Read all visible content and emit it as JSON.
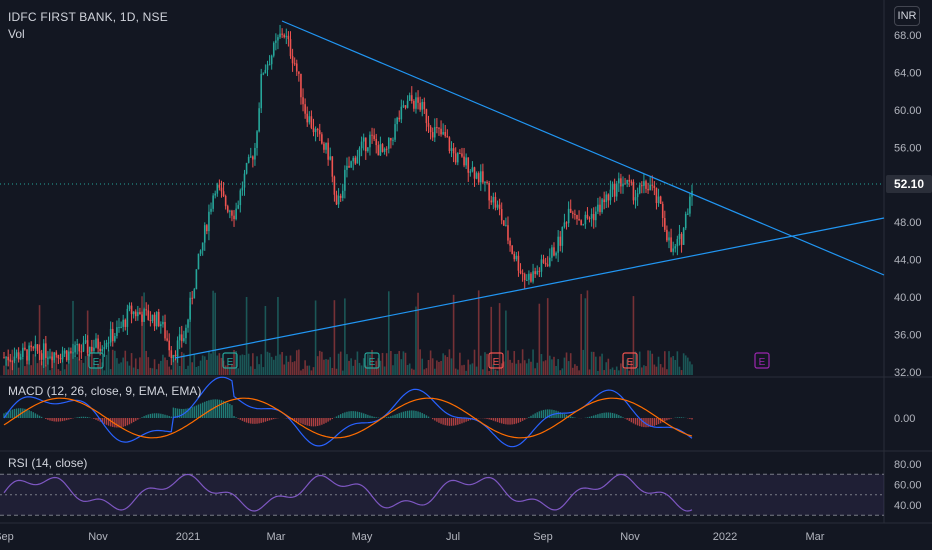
{
  "header": {
    "title": "IDFC FIRST BANK, 1D, NSE",
    "volume_label": "Vol",
    "currency": "INR"
  },
  "price_axis": {
    "ticks": [
      "68.00",
      "64.00",
      "60.00",
      "56.00",
      "52.00",
      "48.00",
      "44.00",
      "40.00",
      "36.00",
      "32.00"
    ],
    "last_price": "52.10"
  },
  "macd": {
    "label": "MACD (12, 26, close, 9, EMA, EMA)",
    "ticks": [
      "0.00"
    ]
  },
  "rsi": {
    "label": "RSI (14, close)",
    "ticks": [
      "80.00",
      "60.00",
      "40.00"
    ]
  },
  "time_axis": {
    "ticks": [
      "Sep",
      "Nov",
      "2021",
      "Mar",
      "May",
      "Jul",
      "Sep",
      "Nov",
      "2022",
      "Mar"
    ]
  },
  "earnings_markers": [
    {
      "letter": "E",
      "color": "#26a69a"
    },
    {
      "letter": "E",
      "color": "#26a69a"
    },
    {
      "letter": "E",
      "color": "#26a69a"
    },
    {
      "letter": "E",
      "color": "#ef5350"
    },
    {
      "letter": "E",
      "color": "#ef5350"
    },
    {
      "letter": "E",
      "color": "#9c27b0"
    }
  ],
  "colors": {
    "background": "#131722",
    "up": "#26a69a",
    "down": "#ef5350",
    "trendline": "#2196f3",
    "macd_line": "#2962ff",
    "signal_line": "#ff6d00",
    "rsi_line": "#7e57c2"
  }
}
